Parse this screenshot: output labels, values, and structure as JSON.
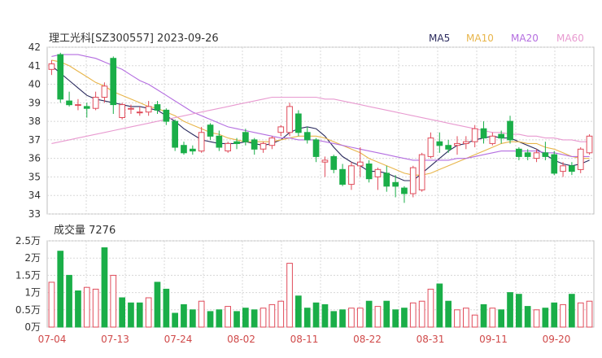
{
  "chart_data": [
    {
      "type": "candlestick",
      "title": "理工光科[SZ300557] 2023-09-26",
      "ylim": [
        33,
        42
      ],
      "yticks": [
        "33",
        "34",
        "35",
        "36",
        "37",
        "38",
        "39",
        "40",
        "41",
        "42"
      ],
      "grid": true,
      "legend_placement": "top-right",
      "legend": [
        {
          "label": "MA5",
          "color": "#2b2b5e"
        },
        {
          "label": "MA10",
          "color": "#e8b54a"
        },
        {
          "label": "MA20",
          "color": "#b46ee0"
        },
        {
          "label": "MA60",
          "color": "#e89ad0"
        }
      ],
      "colors": {
        "up": "#e04b5a",
        "down": "#1aae48"
      },
      "candles": [
        [
          40.8,
          41.3,
          40.5,
          41.1
        ],
        [
          41.6,
          41.7,
          39.0,
          39.2
        ],
        [
          39.1,
          39.6,
          38.8,
          38.9
        ],
        [
          38.9,
          39.2,
          38.6,
          38.9
        ],
        [
          38.8,
          39.0,
          38.2,
          38.7
        ],
        [
          38.7,
          39.6,
          38.6,
          39.3
        ],
        [
          39.3,
          40.1,
          39.0,
          39.9
        ],
        [
          41.4,
          41.5,
          38.4,
          38.9
        ],
        [
          38.2,
          39.0,
          38.1,
          38.9
        ],
        [
          38.7,
          38.9,
          38.4,
          38.7
        ],
        [
          38.5,
          38.8,
          38.3,
          38.5
        ],
        [
          38.5,
          39.1,
          38.3,
          38.8
        ],
        [
          38.9,
          39.1,
          38.4,
          38.6
        ],
        [
          38.6,
          38.7,
          37.8,
          38.0
        ],
        [
          38.0,
          38.1,
          36.4,
          36.6
        ],
        [
          36.7,
          36.9,
          36.2,
          36.3
        ],
        [
          36.5,
          36.7,
          36.2,
          36.4
        ],
        [
          36.4,
          37.7,
          36.3,
          37.4
        ],
        [
          37.8,
          37.9,
          37.0,
          37.2
        ],
        [
          37.2,
          37.5,
          36.4,
          36.6
        ],
        [
          36.4,
          36.9,
          36.3,
          36.8
        ],
        [
          36.9,
          37.1,
          36.5,
          36.8
        ],
        [
          37.4,
          37.6,
          36.7,
          36.9
        ],
        [
          37.0,
          37.1,
          36.2,
          36.5
        ],
        [
          36.5,
          36.9,
          36.3,
          36.8
        ],
        [
          36.7,
          37.2,
          36.5,
          37.1
        ],
        [
          37.4,
          37.8,
          37.2,
          37.7
        ],
        [
          37.4,
          39.0,
          37.2,
          38.8
        ],
        [
          38.4,
          38.6,
          37.2,
          37.4
        ],
        [
          37.4,
          37.7,
          36.8,
          37.0
        ],
        [
          37.0,
          37.1,
          35.8,
          36.1
        ],
        [
          35.8,
          36.1,
          35.0,
          35.9
        ],
        [
          36.1,
          36.2,
          35.2,
          35.4
        ],
        [
          35.4,
          35.7,
          34.5,
          34.6
        ],
        [
          34.6,
          35.8,
          34.3,
          35.6
        ],
        [
          35.6,
          36.6,
          35.0,
          35.8
        ],
        [
          35.7,
          35.9,
          34.7,
          34.9
        ],
        [
          35.0,
          35.5,
          34.3,
          35.4
        ],
        [
          35.2,
          35.6,
          34.2,
          34.5
        ],
        [
          34.7,
          35.1,
          33.9,
          34.5
        ],
        [
          34.4,
          34.5,
          33.6,
          34.1
        ],
        [
          34.1,
          35.6,
          33.9,
          35.5
        ],
        [
          34.3,
          36.3,
          34.2,
          36.2
        ],
        [
          36.1,
          37.4,
          36.0,
          37.1
        ],
        [
          36.9,
          37.4,
          36.3,
          36.7
        ],
        [
          36.7,
          37.0,
          36.3,
          36.5
        ],
        [
          36.7,
          37.2,
          36.2,
          36.8
        ],
        [
          36.8,
          37.2,
          36.5,
          36.9
        ],
        [
          36.9,
          37.8,
          36.6,
          37.6
        ],
        [
          37.6,
          38.0,
          36.8,
          37.1
        ],
        [
          36.8,
          37.4,
          36.7,
          37.2
        ],
        [
          37.3,
          37.5,
          36.8,
          37.1
        ],
        [
          38.0,
          38.3,
          36.8,
          37.0
        ],
        [
          36.5,
          36.6,
          35.9,
          36.1
        ],
        [
          36.3,
          36.5,
          35.9,
          36.1
        ],
        [
          36.0,
          36.5,
          35.8,
          36.3
        ],
        [
          36.3,
          36.9,
          35.9,
          36.1
        ],
        [
          36.2,
          36.4,
          35.1,
          35.2
        ],
        [
          35.3,
          35.8,
          35.0,
          35.6
        ],
        [
          35.6,
          35.8,
          35.1,
          35.3
        ],
        [
          35.4,
          36.6,
          35.2,
          36.5
        ],
        [
          36.3,
          37.3,
          36.2,
          37.2
        ]
      ],
      "ma_lines": {
        "MA5": [
          41.0,
          40.6,
          40.2,
          39.8,
          39.4,
          39.2,
          39.1,
          39.0,
          38.9,
          38.8,
          38.8,
          38.7,
          38.6,
          38.3,
          38.0,
          37.6,
          37.3,
          37.0,
          36.9,
          36.8,
          36.8,
          36.8,
          36.9,
          36.8,
          36.7,
          36.8,
          37.0,
          37.4,
          37.6,
          37.7,
          37.6,
          37.2,
          36.6,
          36.1,
          35.8,
          35.6,
          35.3,
          35.3,
          35.2,
          35.0,
          34.8,
          34.8,
          35.2,
          35.6,
          36.0,
          36.4,
          36.7,
          36.8,
          37.0,
          37.1,
          37.2,
          37.1,
          37.1,
          36.9,
          36.7,
          36.5,
          36.2,
          35.9,
          35.7,
          35.6,
          35.7,
          35.9
        ],
        "MA10": [
          41.3,
          41.2,
          41.0,
          40.7,
          40.4,
          40.1,
          39.9,
          39.6,
          39.4,
          39.2,
          39.0,
          38.8,
          38.7,
          38.5,
          38.3,
          38.0,
          37.8,
          37.6,
          37.4,
          37.3,
          37.1,
          37.0,
          36.9,
          36.9,
          36.9,
          36.9,
          37.0,
          37.1,
          37.2,
          37.2,
          37.2,
          37.1,
          36.9,
          36.7,
          36.5,
          36.3,
          36.0,
          35.8,
          35.6,
          35.4,
          35.2,
          35.1,
          35.1,
          35.2,
          35.4,
          35.6,
          35.8,
          36.0,
          36.2,
          36.4,
          36.6,
          36.8,
          36.9,
          36.9,
          36.8,
          36.8,
          36.6,
          36.5,
          36.3,
          36.1,
          36.0,
          36.0
        ],
        "MA20": [
          41.5,
          41.6,
          41.6,
          41.6,
          41.5,
          41.4,
          41.2,
          41.0,
          40.8,
          40.5,
          40.2,
          40.0,
          39.7,
          39.4,
          39.1,
          38.8,
          38.5,
          38.3,
          38.1,
          37.9,
          37.7,
          37.6,
          37.5,
          37.4,
          37.3,
          37.2,
          37.1,
          37.1,
          37.0,
          37.0,
          37.0,
          36.9,
          36.8,
          36.7,
          36.6,
          36.5,
          36.4,
          36.3,
          36.2,
          36.1,
          36.0,
          35.9,
          35.9,
          35.9,
          35.9,
          35.9,
          36.0,
          36.0,
          36.1,
          36.2,
          36.3,
          36.4,
          36.4,
          36.4,
          36.4,
          36.4,
          36.3,
          36.3,
          36.2,
          36.1,
          36.1,
          36.1
        ],
        "MA60": [
          36.8,
          36.9,
          37.0,
          37.1,
          37.2,
          37.3,
          37.4,
          37.5,
          37.6,
          37.7,
          37.8,
          37.9,
          38.0,
          38.1,
          38.2,
          38.3,
          38.4,
          38.5,
          38.6,
          38.7,
          38.8,
          38.9,
          39.0,
          39.1,
          39.2,
          39.3,
          39.3,
          39.3,
          39.3,
          39.3,
          39.3,
          39.2,
          39.2,
          39.1,
          39.0,
          38.9,
          38.8,
          38.7,
          38.6,
          38.5,
          38.4,
          38.3,
          38.2,
          38.1,
          38.0,
          37.9,
          37.8,
          37.7,
          37.6,
          37.5,
          37.4,
          37.4,
          37.3,
          37.3,
          37.2,
          37.2,
          37.1,
          37.1,
          37.0,
          37.0,
          36.9,
          36.9
        ]
      }
    },
    {
      "type": "bar",
      "title": "成交量 7276",
      "yticks": [
        "0万",
        "0.5万",
        "1万",
        "1.5万",
        "2万",
        "2.5万"
      ],
      "ylim": [
        0,
        2.5
      ],
      "unit": "万",
      "x_tick_labels": [
        "07-04",
        "07-13",
        "07-24",
        "08-02",
        "08-11",
        "08-22",
        "08-31",
        "09-11",
        "09-20"
      ],
      "values": [
        1.3,
        2.2,
        1.5,
        1.05,
        1.15,
        1.1,
        2.3,
        1.5,
        0.85,
        0.7,
        0.7,
        0.85,
        1.3,
        1.1,
        0.4,
        0.65,
        0.5,
        0.75,
        0.45,
        0.5,
        0.6,
        0.45,
        0.55,
        0.5,
        0.55,
        0.65,
        0.75,
        1.85,
        0.9,
        0.55,
        0.7,
        0.65,
        0.45,
        0.5,
        0.55,
        0.55,
        0.75,
        0.6,
        0.75,
        0.5,
        0.55,
        0.7,
        0.75,
        1.1,
        1.25,
        0.75,
        0.5,
        0.55,
        0.35,
        0.65,
        0.55,
        0.5,
        1.0,
        0.95,
        0.6,
        0.5,
        0.55,
        0.7,
        0.65,
        0.95,
        0.7,
        0.75
      ],
      "up_down": [
        "up",
        "down",
        "down",
        "down",
        "up",
        "up",
        "down",
        "up",
        "down",
        "down",
        "down",
        "up",
        "down",
        "down",
        "down",
        "down",
        "down",
        "up",
        "down",
        "down",
        "up",
        "down",
        "down",
        "down",
        "up",
        "up",
        "up",
        "up",
        "down",
        "down",
        "down",
        "down",
        "down",
        "down",
        "up",
        "up",
        "down",
        "up",
        "down",
        "down",
        "down",
        "up",
        "up",
        "up",
        "down",
        "down",
        "up",
        "up",
        "up",
        "down",
        "up",
        "down",
        "down",
        "down",
        "down",
        "up",
        "down",
        "down",
        "up",
        "down",
        "up",
        "up"
      ]
    }
  ]
}
